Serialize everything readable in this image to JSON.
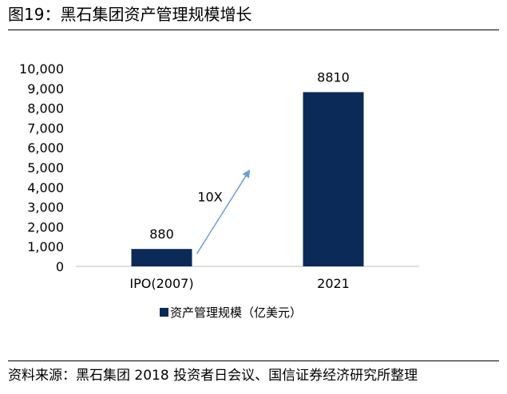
{
  "title": "图19：黑石集团资产管理规模增长",
  "source": "资料来源：黑石集团 2018 投资者日会议、国信证券经济研究所整理",
  "chart_data": {
    "type": "bar",
    "categories": [
      "IPO(2007)",
      "2021"
    ],
    "series": [
      {
        "name": "资产管理规模（亿美元）",
        "values": [
          880,
          8810
        ]
      }
    ],
    "data_labels": [
      "880",
      "8810"
    ],
    "ylim": [
      0,
      10000
    ],
    "yticks": [
      0,
      1000,
      2000,
      3000,
      4000,
      5000,
      6000,
      7000,
      8000,
      9000,
      10000
    ],
    "ytick_labels": [
      "0",
      "1,000",
      "2,000",
      "3,000",
      "4,000",
      "5,000",
      "6,000",
      "7,000",
      "8,000",
      "9,000",
      "10,000"
    ],
    "annotation": "10X",
    "grid": false,
    "legend_position": "bottom",
    "colors": {
      "bar": "#0c2a57",
      "arrow": "#6a9fd4",
      "axis": "#bfbfbf"
    }
  }
}
